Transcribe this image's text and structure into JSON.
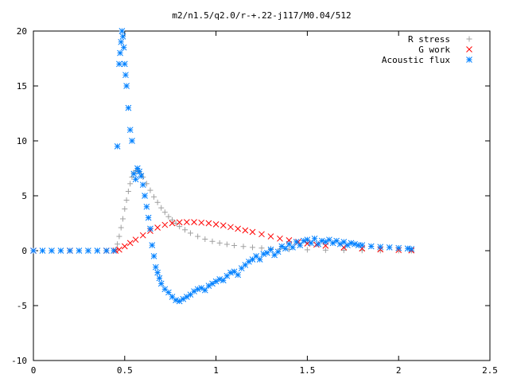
{
  "chart_data": {
    "type": "scatter",
    "title": "m2/n1.5/q2.0/r-+.22-j117/M0.04/512",
    "xlabel": "",
    "ylabel": "",
    "xlim": [
      0,
      2.5
    ],
    "ylim": [
      -10,
      20
    ],
    "x_ticks": [
      {
        "value": 0,
        "label": "0"
      },
      {
        "value": 0.5,
        "label": "0.5"
      },
      {
        "value": 1,
        "label": "1"
      },
      {
        "value": 1.5,
        "label": "1.5"
      },
      {
        "value": 2,
        "label": "2"
      },
      {
        "value": 2.5,
        "label": "2.5"
      }
    ],
    "y_ticks": [
      {
        "value": -10,
        "label": "-10"
      },
      {
        "value": -5,
        "label": "-5"
      },
      {
        "value": 0,
        "label": "0"
      },
      {
        "value": 5,
        "label": "5"
      },
      {
        "value": 10,
        "label": "10"
      },
      {
        "value": 15,
        "label": "15"
      },
      {
        "value": 20,
        "label": "20"
      }
    ],
    "grid": false,
    "legend_position": "top-right",
    "series": [
      {
        "name": "R stress",
        "marker": "plus",
        "color": "#a0a0a0",
        "x": [
          0.0,
          0.1,
          0.2,
          0.3,
          0.4,
          0.45,
          0.46,
          0.47,
          0.48,
          0.49,
          0.5,
          0.51,
          0.52,
          0.53,
          0.54,
          0.55,
          0.56,
          0.57,
          0.58,
          0.59,
          0.6,
          0.62,
          0.64,
          0.66,
          0.68,
          0.7,
          0.72,
          0.74,
          0.76,
          0.78,
          0.8,
          0.83,
          0.86,
          0.9,
          0.94,
          0.98,
          1.02,
          1.06,
          1.1,
          1.15,
          1.2,
          1.25,
          1.3,
          1.35,
          1.4,
          1.5,
          1.6,
          1.7,
          1.8,
          1.9,
          2.0,
          2.07
        ],
        "y": [
          0,
          0,
          0,
          0,
          0,
          0.1,
          0.6,
          1.3,
          2.1,
          2.9,
          3.8,
          4.6,
          5.4,
          6.1,
          6.7,
          7.1,
          7.3,
          7.3,
          7.2,
          7.0,
          6.7,
          6.1,
          5.5,
          4.9,
          4.4,
          3.9,
          3.5,
          3.1,
          2.8,
          2.5,
          2.2,
          1.9,
          1.6,
          1.3,
          1.05,
          0.85,
          0.7,
          0.58,
          0.47,
          0.38,
          0.3,
          0.24,
          0.19,
          0.15,
          0.12,
          0.08,
          0.05,
          0.03,
          0.02,
          0.01,
          0.01,
          0.0
        ]
      },
      {
        "name": "G work",
        "marker": "cross",
        "color": "#ff0000",
        "x": [
          0.0,
          0.2,
          0.4,
          0.45,
          0.47,
          0.5,
          0.53,
          0.56,
          0.6,
          0.64,
          0.68,
          0.72,
          0.76,
          0.8,
          0.84,
          0.88,
          0.92,
          0.96,
          1.0,
          1.04,
          1.08,
          1.12,
          1.16,
          1.2,
          1.25,
          1.3,
          1.35,
          1.4,
          1.45,
          1.5,
          1.55,
          1.6,
          1.7,
          1.8,
          1.9,
          2.0,
          2.07
        ],
        "y": [
          0,
          0,
          0,
          0.0,
          0.1,
          0.4,
          0.7,
          1.0,
          1.4,
          1.8,
          2.1,
          2.35,
          2.5,
          2.58,
          2.6,
          2.6,
          2.55,
          2.5,
          2.4,
          2.3,
          2.15,
          2.0,
          1.85,
          1.7,
          1.5,
          1.3,
          1.1,
          0.95,
          0.8,
          0.65,
          0.55,
          0.45,
          0.3,
          0.2,
          0.12,
          0.06,
          0.03
        ]
      },
      {
        "name": "Acoustic flux",
        "marker": "star",
        "color": "#0080ff",
        "x": [
          0.0,
          0.05,
          0.1,
          0.15,
          0.2,
          0.25,
          0.3,
          0.35,
          0.4,
          0.44,
          0.46,
          0.47,
          0.475,
          0.48,
          0.485,
          0.49,
          0.495,
          0.5,
          0.505,
          0.51,
          0.52,
          0.53,
          0.54,
          0.55,
          0.56,
          0.57,
          0.58,
          0.59,
          0.6,
          0.61,
          0.62,
          0.63,
          0.64,
          0.65,
          0.66,
          0.67,
          0.68,
          0.69,
          0.7,
          0.72,
          0.74,
          0.76,
          0.78,
          0.8,
          0.82,
          0.84,
          0.86,
          0.88,
          0.9,
          0.92,
          0.94,
          0.96,
          0.98,
          1.0,
          1.02,
          1.04,
          1.06,
          1.08,
          1.1,
          1.12,
          1.14,
          1.16,
          1.18,
          1.2,
          1.22,
          1.24,
          1.26,
          1.28,
          1.3,
          1.32,
          1.34,
          1.36,
          1.38,
          1.4,
          1.42,
          1.44,
          1.46,
          1.48,
          1.5,
          1.52,
          1.54,
          1.56,
          1.58,
          1.6,
          1.62,
          1.64,
          1.66,
          1.68,
          1.7,
          1.72,
          1.74,
          1.76,
          1.78,
          1.8,
          1.85,
          1.9,
          1.95,
          2.0,
          2.05,
          2.07
        ],
        "y": [
          0,
          0,
          0,
          0,
          0,
          0,
          0,
          0,
          0,
          0,
          9.5,
          17,
          18,
          19,
          20,
          19.5,
          18.5,
          17,
          16,
          15,
          13,
          11,
          10,
          7,
          6.5,
          7.5,
          7.2,
          6.8,
          6,
          5,
          4,
          3,
          2,
          0.5,
          -0.5,
          -1.5,
          -2,
          -2.5,
          -3,
          -3.5,
          -3.8,
          -4.2,
          -4.5,
          -4.6,
          -4.4,
          -4.2,
          -4.0,
          -3.7,
          -3.5,
          -3.4,
          -3.6,
          -3.2,
          -3.0,
          -2.8,
          -2.6,
          -2.7,
          -2.3,
          -2.0,
          -1.9,
          -2.2,
          -1.6,
          -1.3,
          -1.0,
          -0.8,
          -0.5,
          -0.8,
          -0.3,
          -0.2,
          0.1,
          -0.4,
          -0.1,
          0.4,
          0.2,
          0.6,
          0.3,
          0.8,
          0.5,
          0.9,
          1.0,
          0.7,
          1.1,
          0.6,
          0.9,
          0.8,
          1.0,
          0.7,
          0.9,
          0.6,
          0.8,
          0.5,
          0.7,
          0.6,
          0.5,
          0.5,
          0.4,
          0.35,
          0.3,
          0.25,
          0.2,
          0.15
        ]
      }
    ]
  }
}
